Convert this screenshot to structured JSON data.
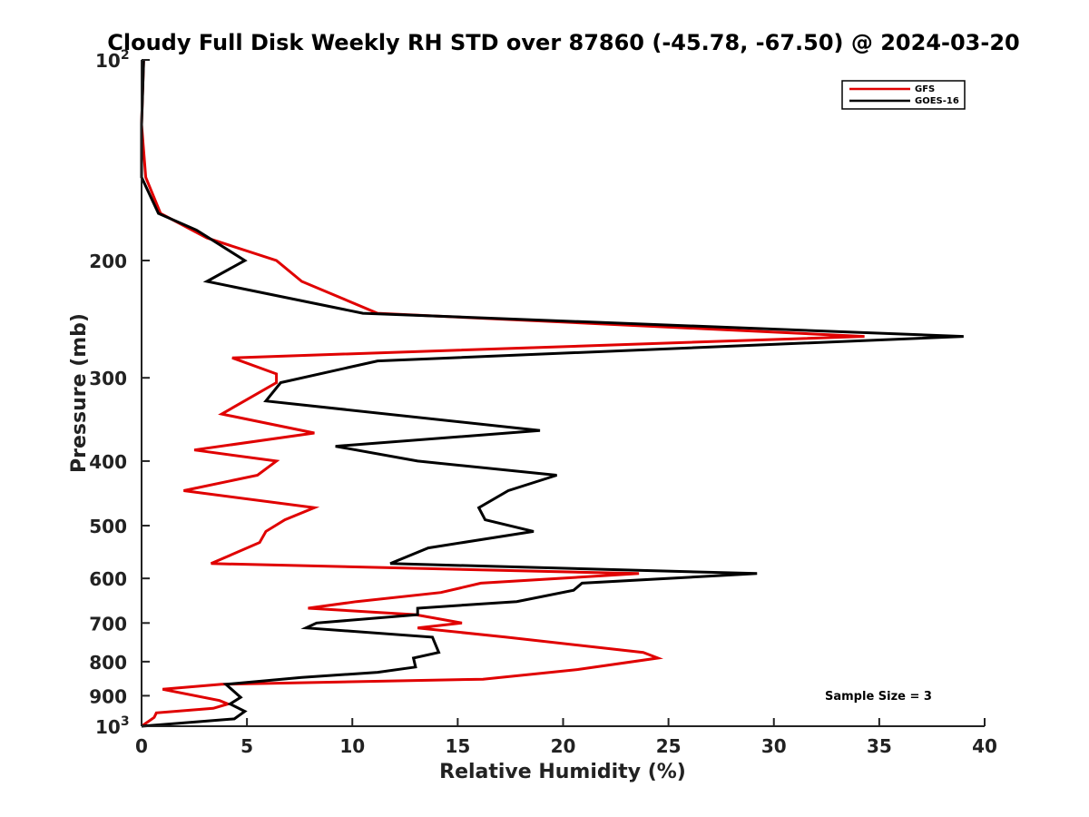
{
  "chart_data": {
    "type": "line",
    "title": "Cloudy Full Disk Weekly RH STD over 87860 (-45.78, -67.50) @ 2024-03-20",
    "xlabel": "Relative Humidity (%)",
    "ylabel": "Pressure (mb)",
    "xlim": [
      0,
      40
    ],
    "ylim": [
      100,
      1000
    ],
    "y_scale": "log",
    "y_reversed": true,
    "grid": false,
    "legend_position": "top-right",
    "x_ticks": [
      0,
      5,
      10,
      15,
      20,
      25,
      30,
      35,
      40
    ],
    "x_tick_labels": [
      "0",
      "5",
      "10",
      "15",
      "20",
      "25",
      "30",
      "35",
      "40"
    ],
    "y_ticks": [
      {
        "value": 100,
        "base": "10",
        "exp": "2"
      },
      {
        "value": 200,
        "label": "200"
      },
      {
        "value": 300,
        "label": "300"
      },
      {
        "value": 400,
        "label": "400"
      },
      {
        "value": 500,
        "label": "500"
      },
      {
        "value": 600,
        "label": "600"
      },
      {
        "value": 700,
        "label": "700"
      },
      {
        "value": 800,
        "label": "800"
      },
      {
        "value": 900,
        "label": "900"
      },
      {
        "value": 1000,
        "base": "10",
        "exp": "3"
      }
    ],
    "annotation": "Sample Size = 3",
    "series": [
      {
        "name": "GFS",
        "color": "#e00000",
        "points": [
          [
            0.1,
            100
          ],
          [
            0.0,
            125
          ],
          [
            0.2,
            150
          ],
          [
            0.9,
            170
          ],
          [
            3.1,
            185
          ],
          [
            6.4,
            200
          ],
          [
            7.6,
            215
          ],
          [
            11.2,
            240
          ],
          [
            34.3,
            260
          ],
          [
            4.3,
            280
          ],
          [
            6.4,
            296
          ],
          [
            6.4,
            305
          ],
          [
            3.8,
            340
          ],
          [
            8.2,
            363
          ],
          [
            2.5,
            385
          ],
          [
            6.4,
            400
          ],
          [
            5.5,
            420
          ],
          [
            2.0,
            443
          ],
          [
            8.2,
            470
          ],
          [
            6.8,
            490
          ],
          [
            5.9,
            510
          ],
          [
            5.6,
            530
          ],
          [
            3.3,
            570
          ],
          [
            23.6,
            590
          ],
          [
            16.1,
            610
          ],
          [
            14.2,
            630
          ],
          [
            10.2,
            650
          ],
          [
            7.9,
            665
          ],
          [
            13.0,
            680
          ],
          [
            15.2,
            700
          ],
          [
            13.1,
            712
          ],
          [
            17.3,
            735
          ],
          [
            23.8,
            775
          ],
          [
            24.5,
            790
          ],
          [
            20.7,
            822
          ],
          [
            16.2,
            850
          ],
          [
            3.8,
            865
          ],
          [
            1.0,
            880
          ],
          [
            3.7,
            915
          ],
          [
            4.1,
            926
          ],
          [
            3.4,
            940
          ],
          [
            0.7,
            955
          ],
          [
            0.6,
            970
          ],
          [
            0.0,
            1000
          ]
        ]
      },
      {
        "name": "GOES-16",
        "color": "#000000",
        "points": [
          [
            0.1,
            100
          ],
          [
            0.0,
            125
          ],
          [
            0.0,
            150
          ],
          [
            0.8,
            170
          ],
          [
            2.6,
            180
          ],
          [
            4.9,
            200
          ],
          [
            3.1,
            215
          ],
          [
            10.5,
            240
          ],
          [
            39.0,
            260
          ],
          [
            11.2,
            283
          ],
          [
            6.6,
            305
          ],
          [
            5.9,
            325
          ],
          [
            18.9,
            360
          ],
          [
            9.2,
            380
          ],
          [
            13.1,
            400
          ],
          [
            19.7,
            420
          ],
          [
            17.4,
            443
          ],
          [
            16.0,
            470
          ],
          [
            16.3,
            490
          ],
          [
            18.6,
            510
          ],
          [
            13.6,
            540
          ],
          [
            11.8,
            570
          ],
          [
            29.2,
            590
          ],
          [
            20.9,
            610
          ],
          [
            20.5,
            625
          ],
          [
            17.8,
            650
          ],
          [
            13.1,
            665
          ],
          [
            13.1,
            680
          ],
          [
            8.3,
            700
          ],
          [
            7.8,
            712
          ],
          [
            13.8,
            735
          ],
          [
            14.1,
            775
          ],
          [
            12.9,
            790
          ],
          [
            13.0,
            815
          ],
          [
            11.2,
            830
          ],
          [
            7.6,
            845
          ],
          [
            4.0,
            865
          ],
          [
            4.7,
            905
          ],
          [
            4.2,
            926
          ],
          [
            4.9,
            950
          ],
          [
            4.4,
            975
          ],
          [
            0.0,
            1000
          ]
        ]
      }
    ]
  }
}
